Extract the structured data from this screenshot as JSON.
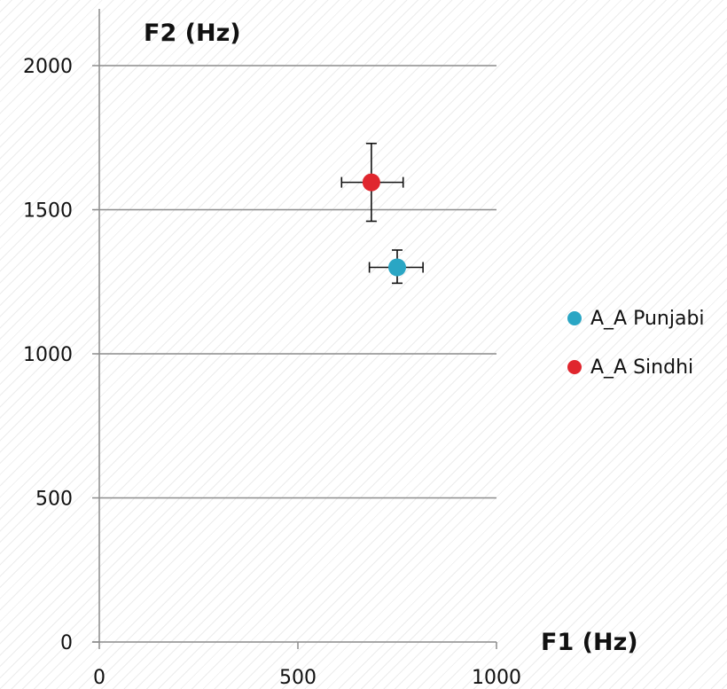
{
  "chart_data": {
    "type": "scatter",
    "xlabel": "F1 (Hz)",
    "ylabel": "F2 (Hz)",
    "xlim": [
      0,
      1000
    ],
    "ylim": [
      0,
      2000
    ],
    "x_ticks": [
      "0",
      "500",
      "1000"
    ],
    "y_ticks": [
      "0",
      "500",
      "1000",
      "1500",
      "2000"
    ],
    "grid": "horizontal",
    "legend_position": "right",
    "series": [
      {
        "name": "A_A Punjabi",
        "color": "#2aa6c4",
        "x": 750,
        "y": 1300,
        "x_err_low": 680,
        "x_err_high": 815,
        "y_err_low": 1245,
        "y_err_high": 1360
      },
      {
        "name": "A_A Sindhi",
        "color": "#e0262e",
        "x": 685,
        "y": 1595,
        "x_err_low": 610,
        "x_err_high": 765,
        "y_err_low": 1460,
        "y_err_high": 1730
      }
    ]
  }
}
